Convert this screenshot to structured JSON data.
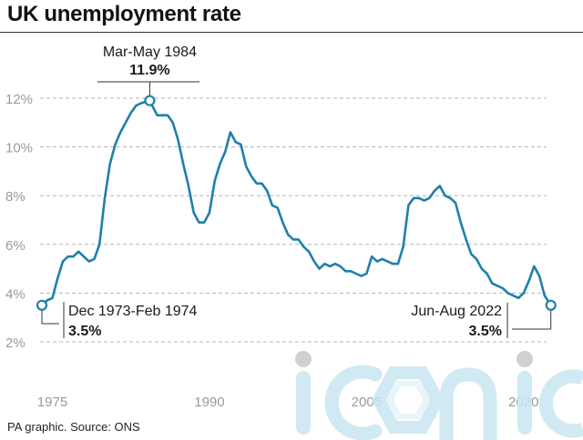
{
  "chart_data": {
    "type": "line",
    "title": "UK unemployment rate",
    "source": "PA graphic. Source: ONS",
    "ylim": [
      1.5,
      12.5
    ],
    "xlim": [
      1974.0,
      2022.8
    ],
    "yticks": [
      2,
      4,
      6,
      8,
      10,
      12
    ],
    "ytick_labels": [
      "2%",
      "4%",
      "6%",
      "8%",
      "10%",
      "12%"
    ],
    "xticks": [
      1975,
      1990,
      2005,
      2020
    ],
    "xtick_labels": [
      "1975",
      "1990",
      "2005",
      "2020"
    ],
    "grid": true,
    "line_color": "#1f7fac",
    "series": [
      {
        "x": [
          1974.0,
          1974.5,
          1975.0,
          1975.5,
          1976.0,
          1976.5,
          1977.0,
          1977.5,
          1978.0,
          1978.5,
          1979.0,
          1979.5,
          1980.0,
          1980.5,
          1981.0,
          1981.5,
          1982.0,
          1982.5,
          1983.0,
          1983.5,
          1984.3,
          1985.0,
          1985.5,
          1986.0,
          1986.5,
          1987.0,
          1987.5,
          1988.0,
          1988.5,
          1989.0,
          1989.5,
          1990.0,
          1990.5,
          1991.0,
          1991.5,
          1992.0,
          1992.5,
          1993.0,
          1993.5,
          1994.0,
          1994.5,
          1995.0,
          1995.5,
          1996.0,
          1996.5,
          1997.0,
          1997.5,
          1998.0,
          1998.5,
          1999.0,
          1999.5,
          2000.0,
          2000.5,
          2001.0,
          2001.5,
          2002.0,
          2002.5,
          2003.0,
          2003.5,
          2004.0,
          2004.5,
          2005.0,
          2005.5,
          2006.0,
          2006.5,
          2007.0,
          2007.5,
          2008.0,
          2008.5,
          2009.0,
          2009.5,
          2010.0,
          2010.5,
          2011.0,
          2011.5,
          2012.0,
          2012.5,
          2013.0,
          2013.5,
          2014.0,
          2014.5,
          2015.0,
          2015.5,
          2016.0,
          2016.5,
          2017.0,
          2017.5,
          2018.0,
          2018.5,
          2019.0,
          2019.5,
          2020.0,
          2020.5,
          2021.0,
          2021.5,
          2022.0,
          2022.6
        ],
        "y": [
          3.5,
          3.7,
          3.8,
          4.6,
          5.3,
          5.5,
          5.5,
          5.7,
          5.5,
          5.3,
          5.4,
          6.0,
          7.9,
          9.3,
          10.1,
          10.6,
          11.0,
          11.4,
          11.7,
          11.8,
          11.9,
          11.3,
          11.3,
          11.3,
          11.0,
          10.3,
          9.3,
          8.4,
          7.3,
          6.9,
          6.9,
          7.3,
          8.6,
          9.3,
          9.8,
          10.6,
          10.2,
          10.1,
          9.2,
          8.8,
          8.5,
          8.5,
          8.2,
          7.6,
          7.5,
          6.9,
          6.4,
          6.2,
          6.2,
          5.9,
          5.7,
          5.3,
          5.0,
          5.2,
          5.1,
          5.2,
          5.1,
          4.9,
          4.9,
          4.8,
          4.7,
          4.8,
          5.5,
          5.3,
          5.4,
          5.3,
          5.2,
          5.2,
          5.9,
          7.6,
          7.9,
          7.9,
          7.8,
          7.9,
          8.2,
          8.4,
          8.0,
          7.9,
          7.7,
          6.9,
          6.2,
          5.6,
          5.4,
          5.0,
          4.8,
          4.4,
          4.3,
          4.2,
          4.0,
          3.9,
          3.8,
          4.0,
          4.5,
          5.1,
          4.7,
          3.9,
          3.5
        ]
      }
    ],
    "annotations": [
      {
        "label": "Mar-May 1984",
        "value_label": "11.9%",
        "x": 1984.3,
        "y": 11.9,
        "position": "top"
      },
      {
        "label": "Dec 1973-Feb 1974",
        "value_label": "3.5%",
        "x": 1974.0,
        "y": 3.5,
        "position": "bottom-left"
      },
      {
        "label": "Jun-Aug 2022",
        "value_label": "3.5%",
        "x": 2022.6,
        "y": 3.5,
        "position": "bottom-right"
      }
    ]
  },
  "watermark": {
    "text": "iconic",
    "color": "#c9e6f2"
  }
}
